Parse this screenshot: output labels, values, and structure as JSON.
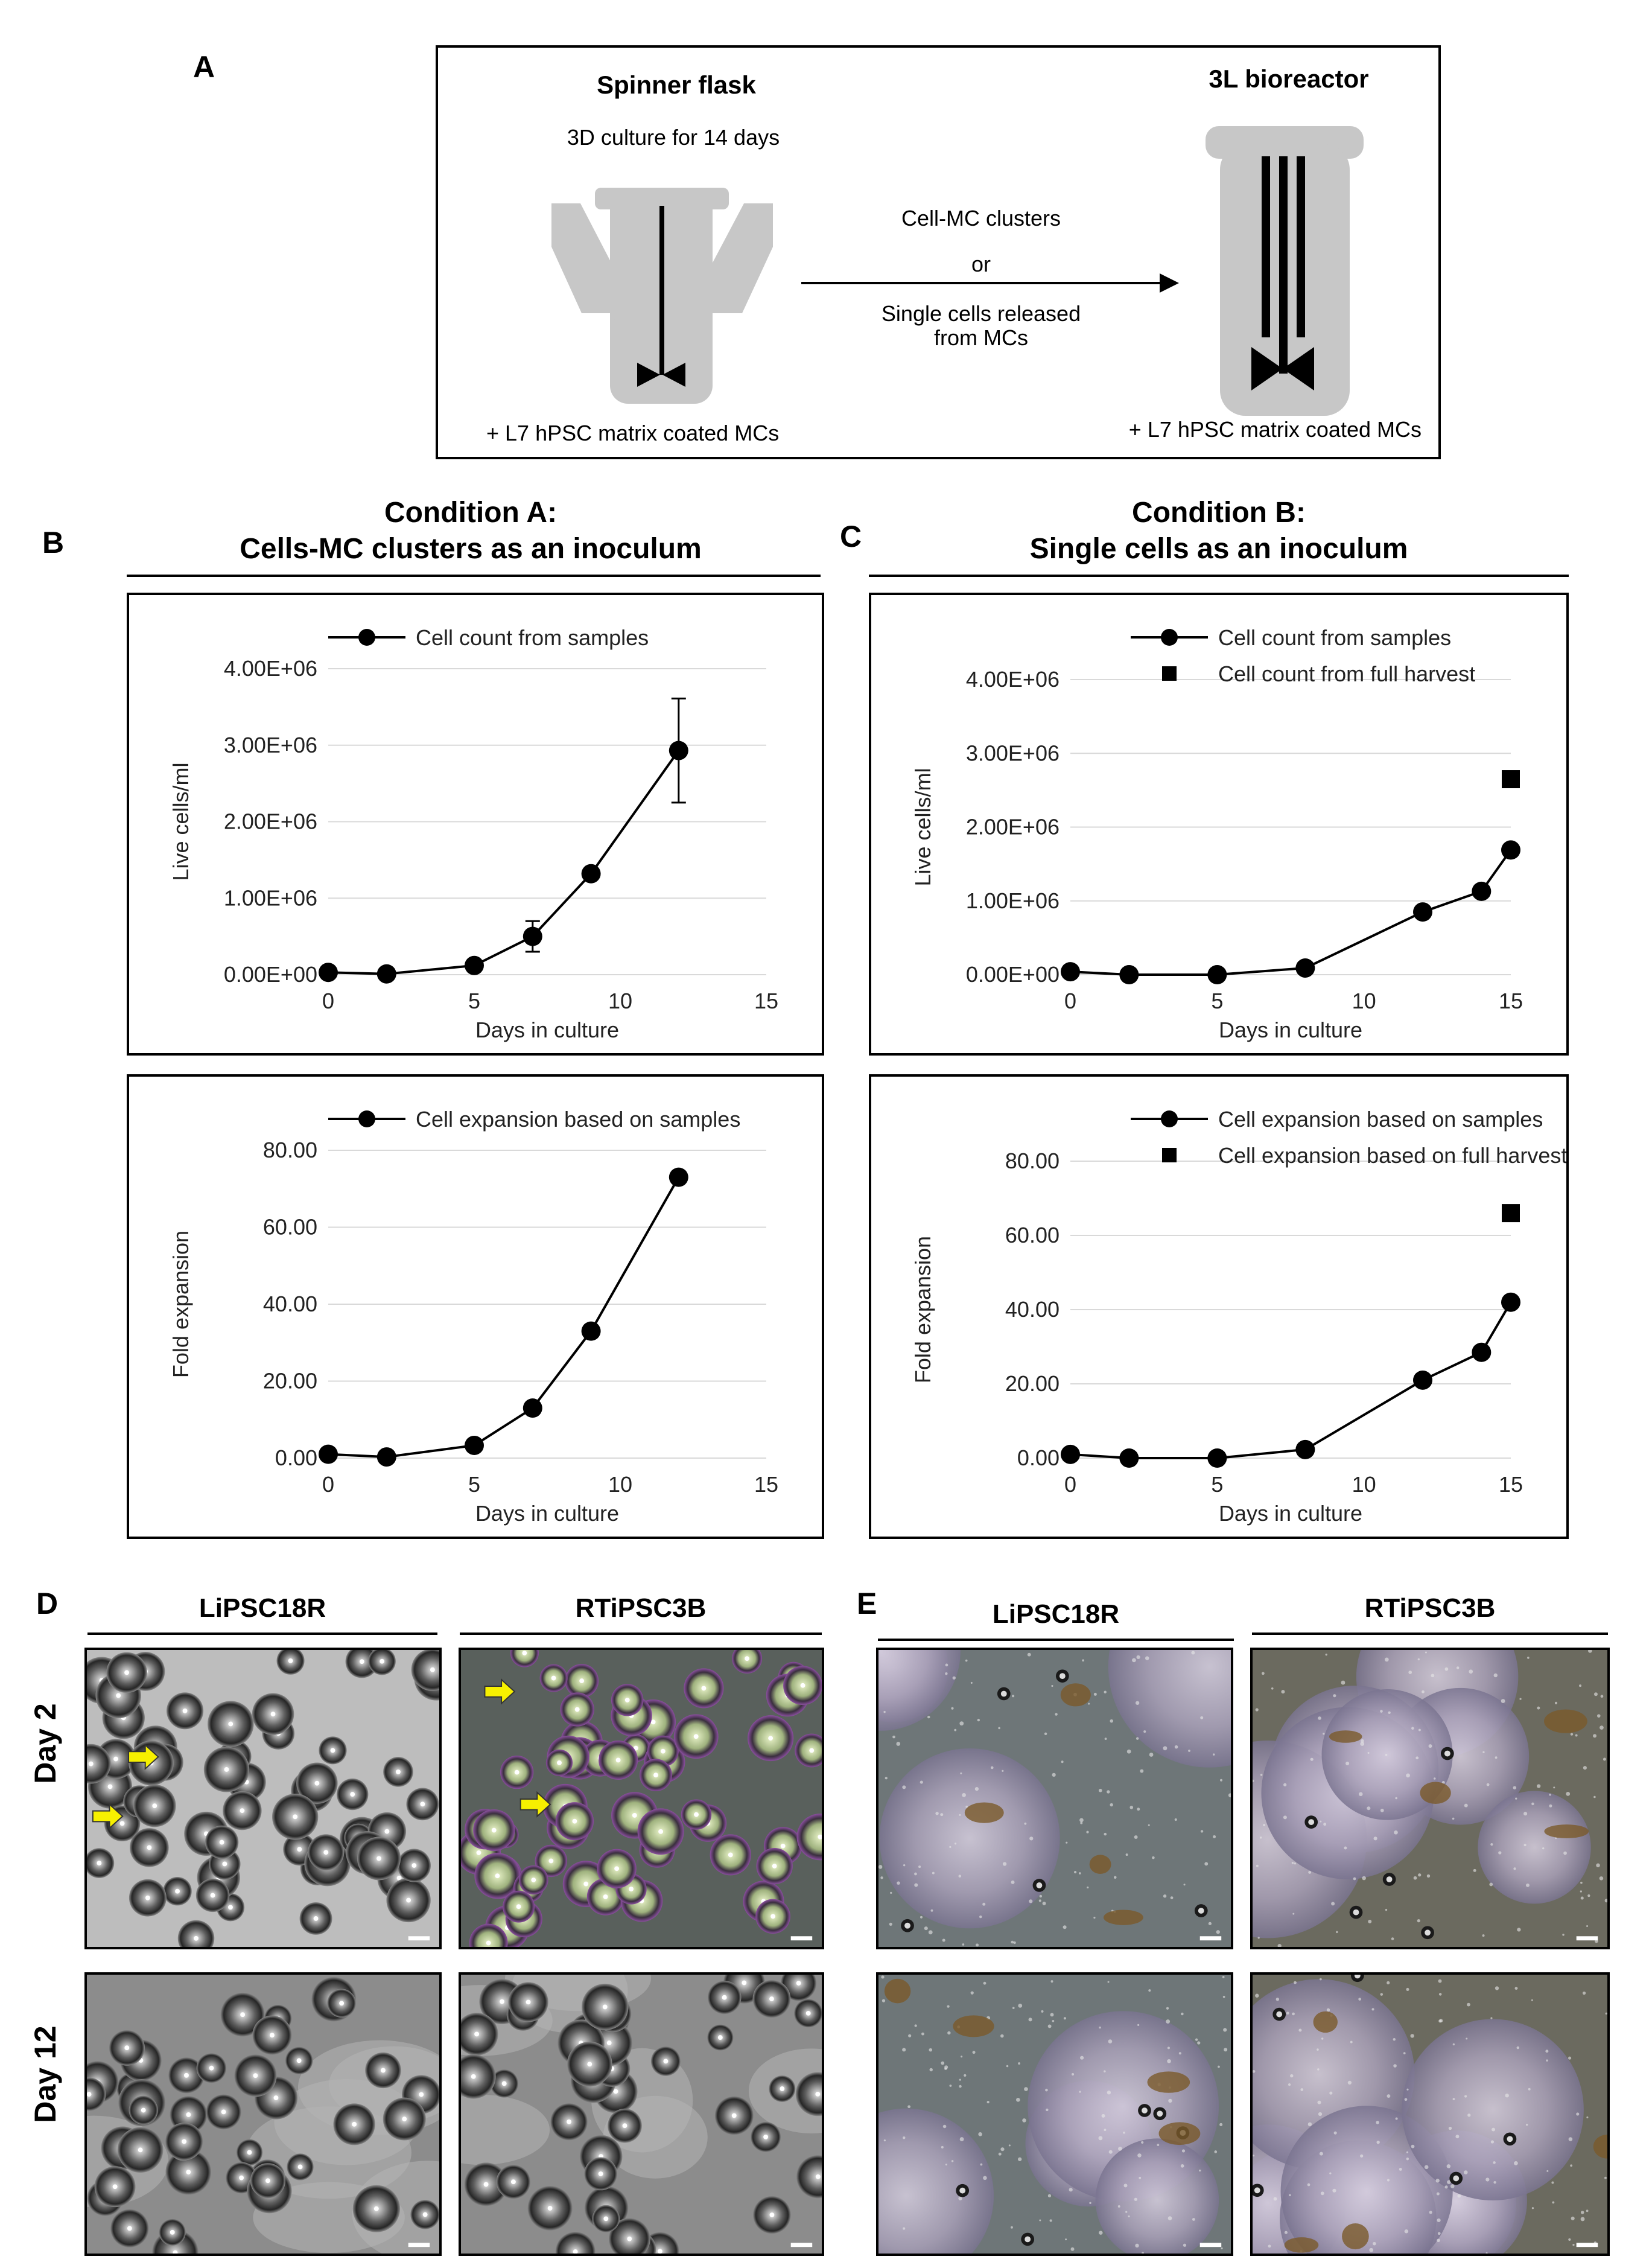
{
  "panel_labels": {
    "a": "A",
    "b": "B",
    "c": "C",
    "d": "D",
    "e": "E"
  },
  "schematic": {
    "spinner_title": "Spinner flask",
    "spinner_sub": "3D culture for 14 days",
    "spinner_note": "+ L7 hPSC matrix coated MCs",
    "arrow_line1": "Cell-MC  clusters",
    "arrow_or": "or",
    "arrow_line3": "Single cells released",
    "arrow_line4": "from MCs",
    "bioreactor_title": "3L bioreactor",
    "bioreactor_note": "+ L7 hPSC matrix coated MCs"
  },
  "conditions": {
    "a_line1": "Condition A:",
    "a_line2": "Cells-MC clusters as an inoculum",
    "b_line1": "Condition B:",
    "b_line2": "Single cells as an inoculum"
  },
  "chart_data": [
    {
      "id": "B_top",
      "type": "line",
      "xlabel": "Days in culture",
      "ylabel": "Live cells/ml",
      "xlim": [
        0,
        15
      ],
      "ylim": [
        0,
        4000000
      ],
      "xticks": [
        "0",
        "5",
        "10",
        "15"
      ],
      "yticks": [
        "0.00E+00",
        "1.00E+06",
        "2.00E+06",
        "3.00E+06",
        "4.00E+06"
      ],
      "legend": [
        "Cell count from samples"
      ],
      "series": [
        {
          "name": "Cell count from samples",
          "marker": "circle",
          "x": [
            0,
            2,
            5,
            7,
            9,
            12
          ],
          "y": [
            30000,
            10000,
            120000,
            500000,
            1320000,
            2930000
          ],
          "err": [
            0,
            0,
            0,
            200000,
            0,
            680000
          ]
        }
      ]
    },
    {
      "id": "C_top",
      "type": "line",
      "xlabel": "Days in culture",
      "ylabel": "Live cells/ml",
      "xlim": [
        0,
        15
      ],
      "ylim": [
        0,
        4000000
      ],
      "xticks": [
        "0",
        "5",
        "10",
        "15"
      ],
      "yticks": [
        "0.00E+00",
        "1.00E+06",
        "2.00E+06",
        "3.00E+06",
        "4.00E+06"
      ],
      "legend": [
        "Cell count from samples",
        "Cell count from full harvest"
      ],
      "series": [
        {
          "name": "Cell count from samples",
          "marker": "circle",
          "x": [
            0,
            2,
            5,
            8,
            12,
            14,
            15
          ],
          "y": [
            40000,
            0,
            0,
            90000,
            850000,
            1130000,
            1690000
          ]
        },
        {
          "name": "Cell count from full harvest",
          "marker": "square",
          "noline": true,
          "x": [
            15
          ],
          "y": [
            2650000
          ]
        }
      ]
    },
    {
      "id": "B_bottom",
      "type": "line",
      "xlabel": "Days in culture",
      "ylabel": "Fold expansion",
      "xlim": [
        0,
        15
      ],
      "ylim": [
        0,
        80
      ],
      "xticks": [
        "0",
        "5",
        "10",
        "15"
      ],
      "yticks": [
        "0.00",
        "20.00",
        "40.00",
        "60.00",
        "80.00"
      ],
      "legend": [
        "Cell expansion based on samples"
      ],
      "series": [
        {
          "name": "Cell expansion based on samples",
          "marker": "circle",
          "x": [
            0,
            2,
            5,
            7,
            9,
            12
          ],
          "y": [
            1,
            0.3,
            3.3,
            13,
            33,
            73
          ]
        }
      ]
    },
    {
      "id": "C_bottom",
      "type": "line",
      "xlabel": "Days in culture",
      "ylabel": "Fold expansion",
      "xlim": [
        0,
        15
      ],
      "ylim": [
        0,
        80
      ],
      "xticks": [
        "0",
        "5",
        "10",
        "15"
      ],
      "yticks": [
        "0.00",
        "20.00",
        "40.00",
        "60.00",
        "80.00"
      ],
      "legend": [
        "Cell expansion based on samples",
        "Cell expansion based on full harvest"
      ],
      "series": [
        {
          "name": "Cell expansion based on samples",
          "marker": "circle",
          "x": [
            0,
            2,
            5,
            8,
            12,
            14,
            15
          ],
          "y": [
            1,
            0,
            0,
            2.3,
            21,
            28.5,
            42
          ]
        },
        {
          "name": "Cell expansion based on full harvest",
          "marker": "square",
          "noline": true,
          "x": [
            15
          ],
          "y": [
            66
          ]
        }
      ]
    }
  ],
  "micrographs": {
    "d_col1": "LiPSC18R",
    "d_col2": "RTiPSC3B",
    "e_col1": "LiPSC18R",
    "e_col2": "RTiPSC3B",
    "row1": "Day 2",
    "row2": "Day 12"
  }
}
